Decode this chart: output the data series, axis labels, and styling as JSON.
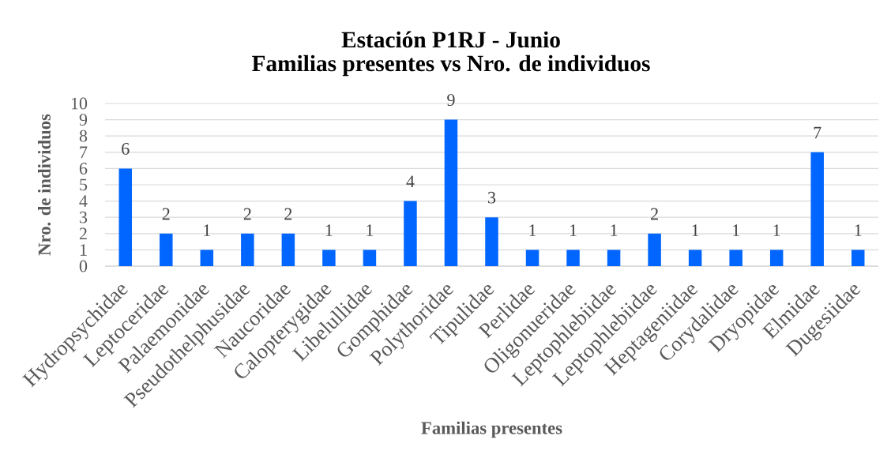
{
  "chart_data": {
    "type": "bar",
    "title": "Estación P1RJ - Junio",
    "subtitle": "Familias presentes vs Nro. de individuos",
    "xlabel": "Familias presentes",
    "ylabel": "Nro. de individuos",
    "categories": [
      "Hydropsychidae",
      "Leptoceridae",
      "Palaemonidae",
      "Pseudothelphusidae",
      "Naucoridae",
      "Calopterygidae",
      "Libelullidae",
      "Gomphidae",
      "Polythoridae",
      "Tipulidae",
      "Perlidae",
      "Oligonueridae",
      "Leptophlebiidae",
      "Leptophlebiidae",
      "Heptageniidae",
      "Corydalidae",
      "Dryopidae",
      "Elmidae",
      "Dugesiidae"
    ],
    "values": [
      6,
      2,
      1,
      2,
      2,
      1,
      1,
      4,
      9,
      3,
      1,
      1,
      1,
      2,
      1,
      1,
      1,
      7,
      1
    ],
    "color": "#0066ff",
    "ylim": [
      0,
      10
    ],
    "yticks": [
      0,
      1,
      2,
      3,
      4,
      5,
      6,
      7,
      8,
      9,
      10
    ],
    "grid": "y",
    "data_labels": true
  }
}
